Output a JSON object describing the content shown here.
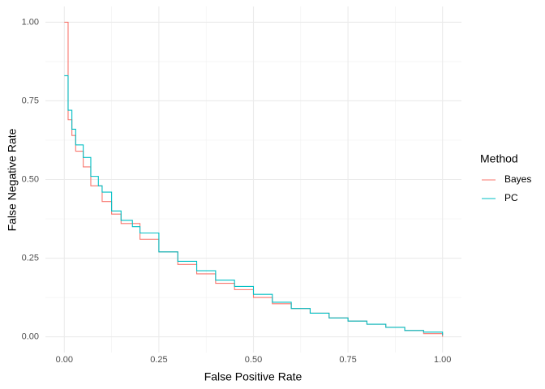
{
  "chart_data": {
    "type": "step",
    "x_label": "False Positive Rate",
    "y_label": "False Negative Rate",
    "legend_title": "Method",
    "legend_position": "right",
    "grid": true,
    "minor_grid": true,
    "xlim": [
      -0.05,
      1.05
    ],
    "ylim": [
      -0.05,
      1.05
    ],
    "xticks": [
      {
        "value": 0,
        "label": "0.00"
      },
      {
        "value": 0.25,
        "label": "0.25"
      },
      {
        "value": 0.5,
        "label": "0.50"
      },
      {
        "value": 0.75,
        "label": "0.75"
      },
      {
        "value": 1,
        "label": "1.00"
      }
    ],
    "yticks": [
      {
        "value": 0,
        "label": "0.00"
      },
      {
        "value": 0.25,
        "label": "0.25"
      },
      {
        "value": 0.5,
        "label": "0.50"
      },
      {
        "value": 0.75,
        "label": "0.75"
      },
      {
        "value": 1,
        "label": "1.00"
      }
    ],
    "series": [
      {
        "name": "Bayes",
        "color": "#F8766D",
        "x": [
          0,
          0.01,
          0.02,
          0.03,
          0.05,
          0.07,
          0.1,
          0.125,
          0.15,
          0.2,
          0.25,
          0.3,
          0.35,
          0.4,
          0.45,
          0.5,
          0.55,
          0.6,
          0.65,
          0.7,
          0.75,
          0.8,
          0.85,
          0.9,
          0.95,
          1.0
        ],
        "values": [
          1.0,
          0.69,
          0.64,
          0.59,
          0.54,
          0.48,
          0.43,
          0.39,
          0.36,
          0.31,
          0.27,
          0.23,
          0.2,
          0.17,
          0.15,
          0.125,
          0.105,
          0.09,
          0.075,
          0.06,
          0.05,
          0.04,
          0.03,
          0.02,
          0.01,
          0.0
        ]
      },
      {
        "name": "PC",
        "color": "#00BFC4",
        "x": [
          0,
          0.01,
          0.02,
          0.03,
          0.05,
          0.07,
          0.09,
          0.1,
          0.125,
          0.15,
          0.18,
          0.2,
          0.25,
          0.3,
          0.35,
          0.4,
          0.45,
          0.5,
          0.55,
          0.6,
          0.65,
          0.7,
          0.75,
          0.8,
          0.85,
          0.9,
          0.95,
          1.0
        ],
        "values": [
          0.83,
          0.72,
          0.66,
          0.61,
          0.57,
          0.51,
          0.48,
          0.46,
          0.4,
          0.37,
          0.35,
          0.33,
          0.27,
          0.24,
          0.21,
          0.18,
          0.16,
          0.135,
          0.11,
          0.09,
          0.075,
          0.06,
          0.05,
          0.04,
          0.03,
          0.02,
          0.015,
          0.005
        ]
      }
    ]
  }
}
